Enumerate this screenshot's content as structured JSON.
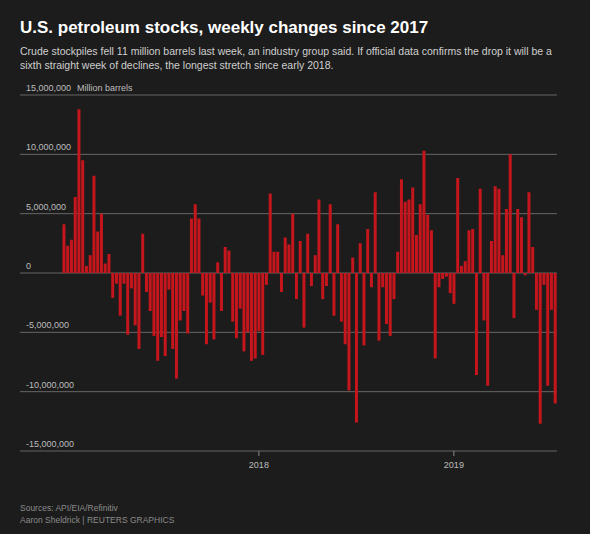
{
  "chart_data": {
    "type": "bar",
    "title": "U.S. petroleum stocks, weekly changes since 2017",
    "subtitle": "Crude stockpiles fell 11 million barrels last week, an industry group said. If official data confirms the drop it will be a sixth straight week of declines, the longest stretch since early 2018.",
    "ylabel": "Million barrels",
    "source": "Sources: API/EIA/Refinitiv",
    "credit": "Aaron Sheldrick  | REUTERS GRAPHICS",
    "categories": [
      null,
      null,
      null,
      null,
      null,
      null,
      null,
      null,
      null,
      null,
      null,
      null,
      null,
      null,
      null,
      null,
      null,
      null,
      null,
      null,
      null,
      null,
      null,
      null,
      null,
      null,
      null,
      null,
      null,
      null,
      null,
      null,
      null,
      null,
      null,
      null,
      null,
      null,
      null,
      null,
      null,
      null,
      null,
      null,
      null,
      null,
      null,
      null,
      null,
      null,
      null,
      null,
      "2018",
      null,
      null,
      null,
      null,
      null,
      null,
      null,
      null,
      null,
      null,
      null,
      null,
      null,
      null,
      null,
      null,
      null,
      null,
      null,
      null,
      null,
      null,
      null,
      null,
      null,
      null,
      null,
      null,
      null,
      null,
      null,
      null,
      null,
      null,
      null,
      null,
      null,
      null,
      null,
      null,
      null,
      null,
      null,
      null,
      null,
      null,
      null,
      null,
      null,
      null,
      null,
      "2019",
      null,
      null,
      null,
      null,
      null,
      null,
      null,
      null,
      null,
      null,
      null,
      null,
      null,
      null,
      null,
      null,
      null,
      null,
      null,
      null,
      null,
      null,
      null,
      null,
      null,
      null,
      null
    ],
    "values": [
      4100000,
      2300000,
      2800000,
      6400000,
      13800000,
      9500000,
      600000,
      1500000,
      8200000,
      3500000,
      5000000,
      800000,
      1600000,
      -2100000,
      -900000,
      -3600000,
      -900000,
      -5200000,
      -1300000,
      -4400000,
      -6400000,
      3300000,
      -1600000,
      -3200000,
      -5300000,
      -7400000,
      -5400000,
      -7000000,
      -1400000,
      -6400000,
      -8900000,
      -4000000,
      -3200000,
      -5100000,
      4600000,
      5800000,
      4600000,
      -1900000,
      -6000000,
      -2500000,
      -5600000,
      900000,
      -3200000,
      2200000,
      1900000,
      -4100000,
      -5500000,
      -3000000,
      -6600000,
      -5000000,
      -7400000,
      -7200000,
      -4900000,
      -6900000,
      -1000000,
      6700000,
      1800000,
      1800000,
      -1600000,
      3000000,
      2400000,
      5000000,
      -2200000,
      2700000,
      -4600000,
      3300000,
      -1100000,
      1500000,
      6200000,
      -2200000,
      -1100000,
      5800000,
      -3600000,
      4100000,
      -4100000,
      -6000000,
      -9900000,
      1300000,
      -12600000,
      2500000,
      -6100000,
      3700000,
      -1200000,
      6800000,
      -5700000,
      -1200000,
      -4300000,
      -5300000,
      -2200000,
      1800000,
      7900000,
      6000000,
      6200000,
      7200000,
      3200000,
      5800000,
      10300000,
      4900000,
      3600000,
      -7200000,
      -1200000,
      -500000,
      -300000,
      -1700000,
      -2600000,
      8000000,
      600000,
      1000000,
      3600000,
      3700000,
      -8600000,
      7100000,
      -4000000,
      -9500000,
      2700000,
      7300000,
      7100000,
      1500000,
      5400000,
      10000000,
      -3800000,
      5400000,
      4700000,
      -200000,
      6800000,
      2200000,
      -3100000,
      -12700000,
      -1000000,
      -9500000,
      -3100000,
      -11000000
    ],
    "color": "#c4161c",
    "ylim": [
      -15000000,
      15000000
    ],
    "yticks": [
      {
        "value": -15000000,
        "label": "-15,000,000"
      },
      {
        "value": -10000000,
        "label": "-10,000,000"
      },
      {
        "value": -5000000,
        "label": "-5,000,000"
      },
      0,
      {
        "value": 5000000,
        "label": "5,000,000"
      },
      {
        "value": 10000000,
        "label": "10,000,000"
      },
      {
        "value": 15000000,
        "label": "15,000,000"
      }
    ],
    "grid": true
  }
}
